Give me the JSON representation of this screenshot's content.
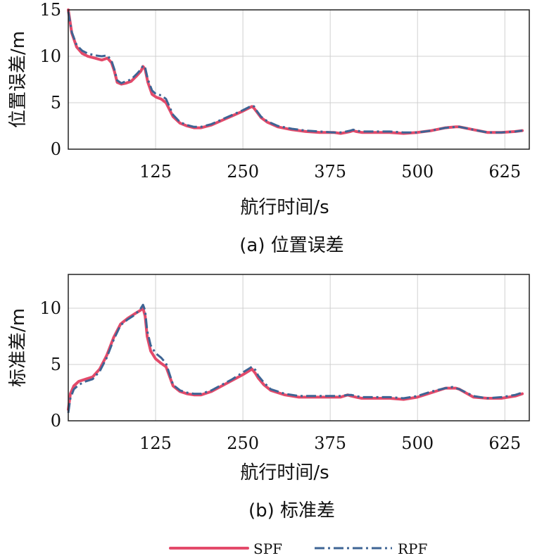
{
  "legend": [
    {
      "name": "SPF",
      "color": "#e34a6a",
      "style": "solid"
    },
    {
      "name": "RPF",
      "color": "#3e6494",
      "style": "dashdot"
    }
  ],
  "chart_data": [
    {
      "type": "line",
      "caption": "(a) 位置误差",
      "xlabel": "航行时间/s",
      "ylabel": "位置误差/m",
      "xlim": [
        0,
        660
      ],
      "ylim": [
        0,
        15
      ],
      "xticks": [
        125,
        250,
        375,
        500,
        625
      ],
      "yticks": [
        0,
        5,
        10,
        15
      ],
      "grid": true,
      "series": [
        {
          "name": "SPF",
          "x": [
            0,
            5,
            12,
            20,
            28,
            38,
            48,
            56,
            62,
            66,
            70,
            76,
            82,
            90,
            98,
            104,
            107,
            110,
            114,
            120,
            126,
            133,
            140,
            150,
            160,
            170,
            180,
            190,
            205,
            220,
            235,
            250,
            258,
            263,
            266,
            270,
            276,
            285,
            300,
            320,
            340,
            360,
            380,
            390,
            398,
            404,
            408,
            412,
            420,
            440,
            460,
            480,
            500,
            520,
            540,
            555,
            560,
            580,
            600,
            620,
            640,
            650
          ],
          "y": [
            15,
            12.5,
            11,
            10.3,
            10,
            9.8,
            9.6,
            9.8,
            9.3,
            8.4,
            7.2,
            7.0,
            7.1,
            7.3,
            7.9,
            8.4,
            8.9,
            8.6,
            7.2,
            5.9,
            5.6,
            5.4,
            5.0,
            3.5,
            2.8,
            2.5,
            2.3,
            2.3,
            2.6,
            3.1,
            3.6,
            4.1,
            4.4,
            4.6,
            4.4,
            4.0,
            3.4,
            2.9,
            2.4,
            2.1,
            1.9,
            1.8,
            1.8,
            1.7,
            1.8,
            1.9,
            2.0,
            1.9,
            1.8,
            1.8,
            1.8,
            1.7,
            1.8,
            2.0,
            2.3,
            2.4,
            2.4,
            2.1,
            1.8,
            1.8,
            1.9,
            2.0
          ]
        },
        {
          "name": "RPF",
          "x": [
            0,
            5,
            12,
            20,
            28,
            38,
            48,
            56,
            62,
            66,
            70,
            76,
            82,
            90,
            98,
            104,
            107,
            110,
            114,
            120,
            126,
            133,
            140,
            150,
            160,
            170,
            180,
            190,
            205,
            220,
            235,
            250,
            258,
            263,
            266,
            270,
            276,
            285,
            300,
            320,
            340,
            360,
            380,
            390,
            398,
            404,
            408,
            412,
            420,
            440,
            460,
            480,
            500,
            520,
            540,
            555,
            560,
            580,
            600,
            620,
            640,
            650
          ],
          "y": [
            14.8,
            12.6,
            11.2,
            10.6,
            10.3,
            10.1,
            10.0,
            10.1,
            9.5,
            8.6,
            7.4,
            7.1,
            7.3,
            7.5,
            8.1,
            8.6,
            9.0,
            8.8,
            7.5,
            6.3,
            5.9,
            5.8,
            5.4,
            3.7,
            2.9,
            2.6,
            2.4,
            2.4,
            2.7,
            3.2,
            3.7,
            4.2,
            4.5,
            4.7,
            4.6,
            4.1,
            3.5,
            3.0,
            2.5,
            2.2,
            2.0,
            1.9,
            1.8,
            1.8,
            1.9,
            2.0,
            2.1,
            2.0,
            1.9,
            1.9,
            1.9,
            1.8,
            1.8,
            2.0,
            2.3,
            2.4,
            2.4,
            2.1,
            1.8,
            1.8,
            1.9,
            2.0
          ]
        }
      ]
    },
    {
      "type": "line",
      "caption": "(b) 标准差",
      "xlabel": "航行时间/s",
      "ylabel": "标准差/m",
      "xlim": [
        0,
        660
      ],
      "ylim": [
        0,
        13
      ],
      "xticks": [
        125,
        250,
        375,
        500,
        625
      ],
      "yticks": [
        0,
        5,
        10
      ],
      "grid": true,
      "series": [
        {
          "name": "SPF",
          "x": [
            0,
            3,
            8,
            15,
            25,
            35,
            45,
            55,
            65,
            75,
            85,
            95,
            103,
            107,
            110,
            113,
            118,
            125,
            133,
            140,
            150,
            160,
            170,
            180,
            190,
            205,
            220,
            235,
            250,
            258,
            263,
            268,
            272,
            280,
            290,
            310,
            330,
            350,
            370,
            390,
            400,
            405,
            412,
            420,
            440,
            460,
            480,
            500,
            520,
            540,
            550,
            555,
            560,
            580,
            600,
            620,
            640,
            650
          ],
          "y": [
            1.0,
            2.4,
            3.1,
            3.5,
            3.7,
            3.9,
            4.6,
            5.8,
            7.4,
            8.6,
            9.1,
            9.5,
            9.8,
            10.0,
            9.3,
            7.5,
            6.2,
            5.5,
            5.1,
            4.8,
            3.1,
            2.6,
            2.4,
            2.3,
            2.3,
            2.6,
            3.1,
            3.6,
            4.1,
            4.4,
            4.6,
            4.2,
            3.8,
            3.2,
            2.7,
            2.3,
            2.1,
            2.1,
            2.1,
            2.1,
            2.3,
            2.2,
            2.1,
            2.0,
            2.0,
            2.0,
            1.9,
            2.1,
            2.5,
            2.9,
            2.9,
            2.9,
            2.8,
            2.1,
            2.0,
            2.0,
            2.2,
            2.4
          ]
        },
        {
          "name": "RPF",
          "x": [
            0,
            3,
            8,
            15,
            25,
            35,
            45,
            55,
            65,
            75,
            85,
            95,
            103,
            107,
            110,
            113,
            118,
            125,
            133,
            140,
            150,
            160,
            170,
            180,
            190,
            205,
            220,
            235,
            250,
            258,
            263,
            268,
            272,
            280,
            290,
            310,
            330,
            350,
            370,
            390,
            400,
            405,
            412,
            420,
            440,
            460,
            480,
            500,
            520,
            540,
            550,
            555,
            560,
            580,
            600,
            620,
            640,
            650
          ],
          "y": [
            0.7,
            2.0,
            2.8,
            3.2,
            3.5,
            3.7,
            4.4,
            5.6,
            7.2,
            8.5,
            9.0,
            9.4,
            9.9,
            10.3,
            9.8,
            8.0,
            6.7,
            6.0,
            5.6,
            5.1,
            3.2,
            2.7,
            2.5,
            2.4,
            2.4,
            2.7,
            3.2,
            3.7,
            4.3,
            4.6,
            4.8,
            4.5,
            4.0,
            3.4,
            2.8,
            2.4,
            2.2,
            2.2,
            2.2,
            2.2,
            2.3,
            2.3,
            2.2,
            2.1,
            2.1,
            2.1,
            2.0,
            2.2,
            2.6,
            2.9,
            3.0,
            2.9,
            2.8,
            2.2,
            2.0,
            2.1,
            2.3,
            2.5
          ]
        }
      ]
    }
  ]
}
